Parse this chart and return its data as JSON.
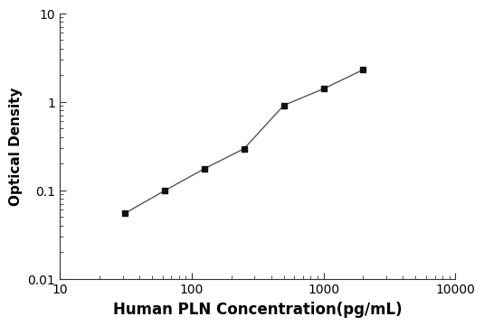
{
  "x": [
    31.25,
    62.5,
    125,
    250,
    500,
    1000,
    2000
  ],
  "y": [
    0.055,
    0.099,
    0.175,
    0.295,
    0.91,
    1.4,
    2.3
  ],
  "xlabel": "Human PLN Concentration(pg/mL)",
  "ylabel": "Optical Density",
  "xlim": [
    10,
    10000
  ],
  "ylim": [
    0.01,
    10
  ],
  "line_color": "#555555",
  "marker_color": "#111111",
  "marker": "s",
  "marker_size": 5,
  "line_width": 1.0,
  "xlabel_fontsize": 12,
  "ylabel_fontsize": 11,
  "tick_fontsize": 10,
  "background_color": "#ffffff",
  "xticks": [
    10,
    100,
    1000,
    10000
  ],
  "xticklabels": [
    "10",
    "100",
    "1000",
    "10000"
  ],
  "yticks": [
    0.01,
    0.1,
    1,
    10
  ],
  "yticklabels": [
    "0.01",
    "0.1",
    "1",
    "10"
  ]
}
